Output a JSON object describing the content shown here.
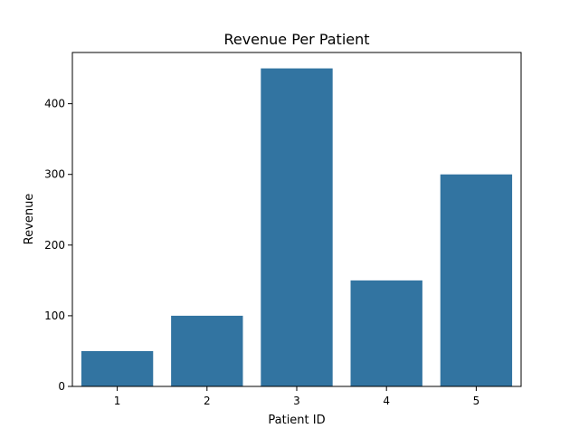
{
  "chart_data": {
    "type": "bar",
    "title": "Revenue Per Patient",
    "xlabel": "Patient ID",
    "ylabel": "Revenue",
    "categories": [
      "1",
      "2",
      "3",
      "4",
      "5"
    ],
    "values": [
      50,
      100,
      450,
      150,
      300
    ],
    "ylim": [
      0,
      472.5
    ],
    "yticks": [
      0,
      100,
      200,
      300,
      400
    ],
    "grid": false,
    "bar_color": "#3274a1",
    "axis_color": "#000000"
  }
}
